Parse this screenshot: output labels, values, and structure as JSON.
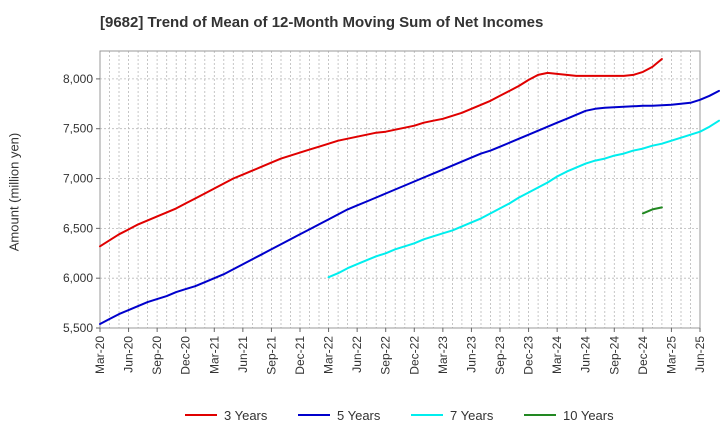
{
  "chart_data": {
    "type": "line",
    "title": "[9682]  Trend of Mean of 12-Month Moving Sum of Net Incomes",
    "xlabel": "",
    "ylabel": "Amount (million yen)",
    "ylim": [
      5500,
      8280
    ],
    "yticks": [
      5500,
      6000,
      6500,
      7000,
      7500,
      8000
    ],
    "ytick_labels": [
      "5,500",
      "6,000",
      "6,500",
      "7,000",
      "7,500",
      "8,000"
    ],
    "x_start": "Mar-20",
    "xticks": [
      "Mar-20",
      "Jun-20",
      "Sep-20",
      "Dec-20",
      "Mar-21",
      "Jun-21",
      "Sep-21",
      "Dec-21",
      "Mar-22",
      "Jun-22",
      "Sep-22",
      "Dec-22",
      "Mar-23",
      "Jun-23",
      "Sep-23",
      "Dec-23",
      "Mar-24",
      "Jun-24",
      "Sep-24",
      "Dec-24",
      "Mar-25",
      "Jun-25"
    ],
    "grid": true,
    "legend_position": "bottom",
    "series": [
      {
        "name": "3 Years",
        "color": "#e00000",
        "values": [
          6320,
          6380,
          6440,
          6490,
          6540,
          6580,
          6620,
          6660,
          6700,
          6750,
          6800,
          6850,
          6900,
          6950,
          7000,
          7040,
          7080,
          7120,
          7160,
          7200,
          7230,
          7260,
          7290,
          7320,
          7350,
          7380,
          7400,
          7420,
          7440,
          7460,
          7470,
          7490,
          7510,
          7530,
          7560,
          7580,
          7600,
          7630,
          7660,
          7700,
          7740,
          7780,
          7830,
          7880,
          7930,
          7990,
          8040,
          8060,
          8050,
          8040,
          8030,
          8030,
          8030,
          8030,
          8030,
          8030,
          8040,
          8070,
          8120,
          8200
        ]
      },
      {
        "name": "5 Years",
        "color": "#0000cc",
        "values": [
          5540,
          5590,
          5640,
          5680,
          5720,
          5760,
          5790,
          5820,
          5860,
          5890,
          5920,
          5960,
          6000,
          6040,
          6090,
          6140,
          6190,
          6240,
          6290,
          6340,
          6390,
          6440,
          6490,
          6540,
          6590,
          6640,
          6690,
          6730,
          6770,
          6810,
          6850,
          6890,
          6930,
          6970,
          7010,
          7050,
          7090,
          7130,
          7170,
          7210,
          7250,
          7280,
          7320,
          7360,
          7400,
          7440,
          7480,
          7520,
          7560,
          7600,
          7640,
          7680,
          7700,
          7710,
          7715,
          7720,
          7725,
          7730,
          7730,
          7735,
          7740,
          7750,
          7760,
          7790,
          7830,
          7880
        ]
      },
      {
        "name": "7 Years",
        "color": "#00eeee",
        "values": [
          6010,
          6050,
          6100,
          6140,
          6180,
          6220,
          6250,
          6290,
          6320,
          6350,
          6390,
          6420,
          6450,
          6480,
          6520,
          6560,
          6600,
          6650,
          6700,
          6750,
          6810,
          6860,
          6910,
          6960,
          7020,
          7070,
          7110,
          7150,
          7180,
          7200,
          7230,
          7250,
          7280,
          7300,
          7330,
          7350,
          7380,
          7410,
          7440,
          7470,
          7520,
          7580
        ]
      },
      {
        "name": "10 Years",
        "color": "#228822",
        "values": [
          6650,
          6690,
          6710
        ]
      }
    ],
    "series_start_index": [
      0,
      0,
      24,
      57
    ]
  }
}
